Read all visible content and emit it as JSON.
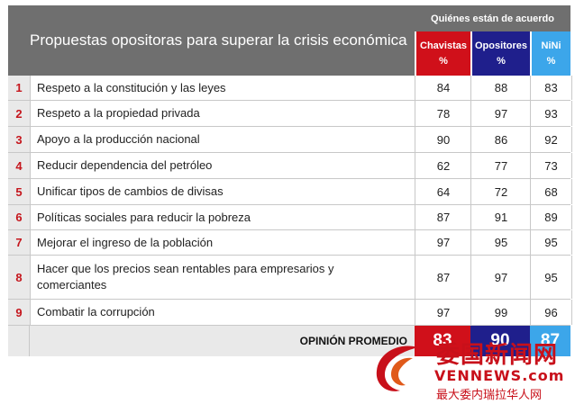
{
  "header": {
    "title": "Propuestas opositoras para superar la crisis económica",
    "group": "Quiénes están de acuerdo",
    "columns": [
      {
        "name": "Chavistas",
        "unit": "%"
      },
      {
        "name": "Opositores",
        "unit": "%"
      },
      {
        "name": "NiNi",
        "unit": "%"
      }
    ]
  },
  "rows": [
    {
      "num": "1",
      "text": "Respeto a la constitución y las leyes",
      "chavistas": "84",
      "opositores": "88",
      "nini": "83"
    },
    {
      "num": "2",
      "text": "Respeto a la propiedad privada",
      "chavistas": "78",
      "opositores": "97",
      "nini": "93"
    },
    {
      "num": "3",
      "text": "Apoyo a la producción nacional",
      "chavistas": "90",
      "opositores": "86",
      "nini": "92"
    },
    {
      "num": "4",
      "text": "Reducir dependencia del petróleo",
      "chavistas": "62",
      "opositores": "77",
      "nini": "73"
    },
    {
      "num": "5",
      "text": "Unificar tipos de cambios de divisas",
      "chavistas": "64",
      "opositores": "72",
      "nini": "68"
    },
    {
      "num": "6",
      "text": "Políticas sociales para reducir la pobreza",
      "chavistas": "87",
      "opositores": "91",
      "nini": "89"
    },
    {
      "num": "7",
      "text": "Mejorar el ingreso de la población",
      "chavistas": "97",
      "opositores": "95",
      "nini": "95"
    },
    {
      "num": "8",
      "text": "Hacer que los precios sean rentables para empresarios y comerciantes",
      "chavistas": "87",
      "opositores": "97",
      "nini": "95"
    },
    {
      "num": "9",
      "text": "Combatir la corrupción",
      "chavistas": "97",
      "opositores": "99",
      "nini": "96"
    }
  ],
  "average": {
    "label": "OPINIÓN PROMEDIO",
    "chavistas": "83",
    "opositores": "90",
    "nini": "87"
  },
  "watermark": {
    "chinese": "委国新闻网",
    "domain": "VENNEWS.com",
    "slogan": "最大委内瑞拉华人网"
  },
  "colors": {
    "chavistas": "#d0101a",
    "opositores": "#1f1f8c",
    "nini": "#3ca6ea",
    "header": "#6f6f6f",
    "number": "#c5161d"
  }
}
